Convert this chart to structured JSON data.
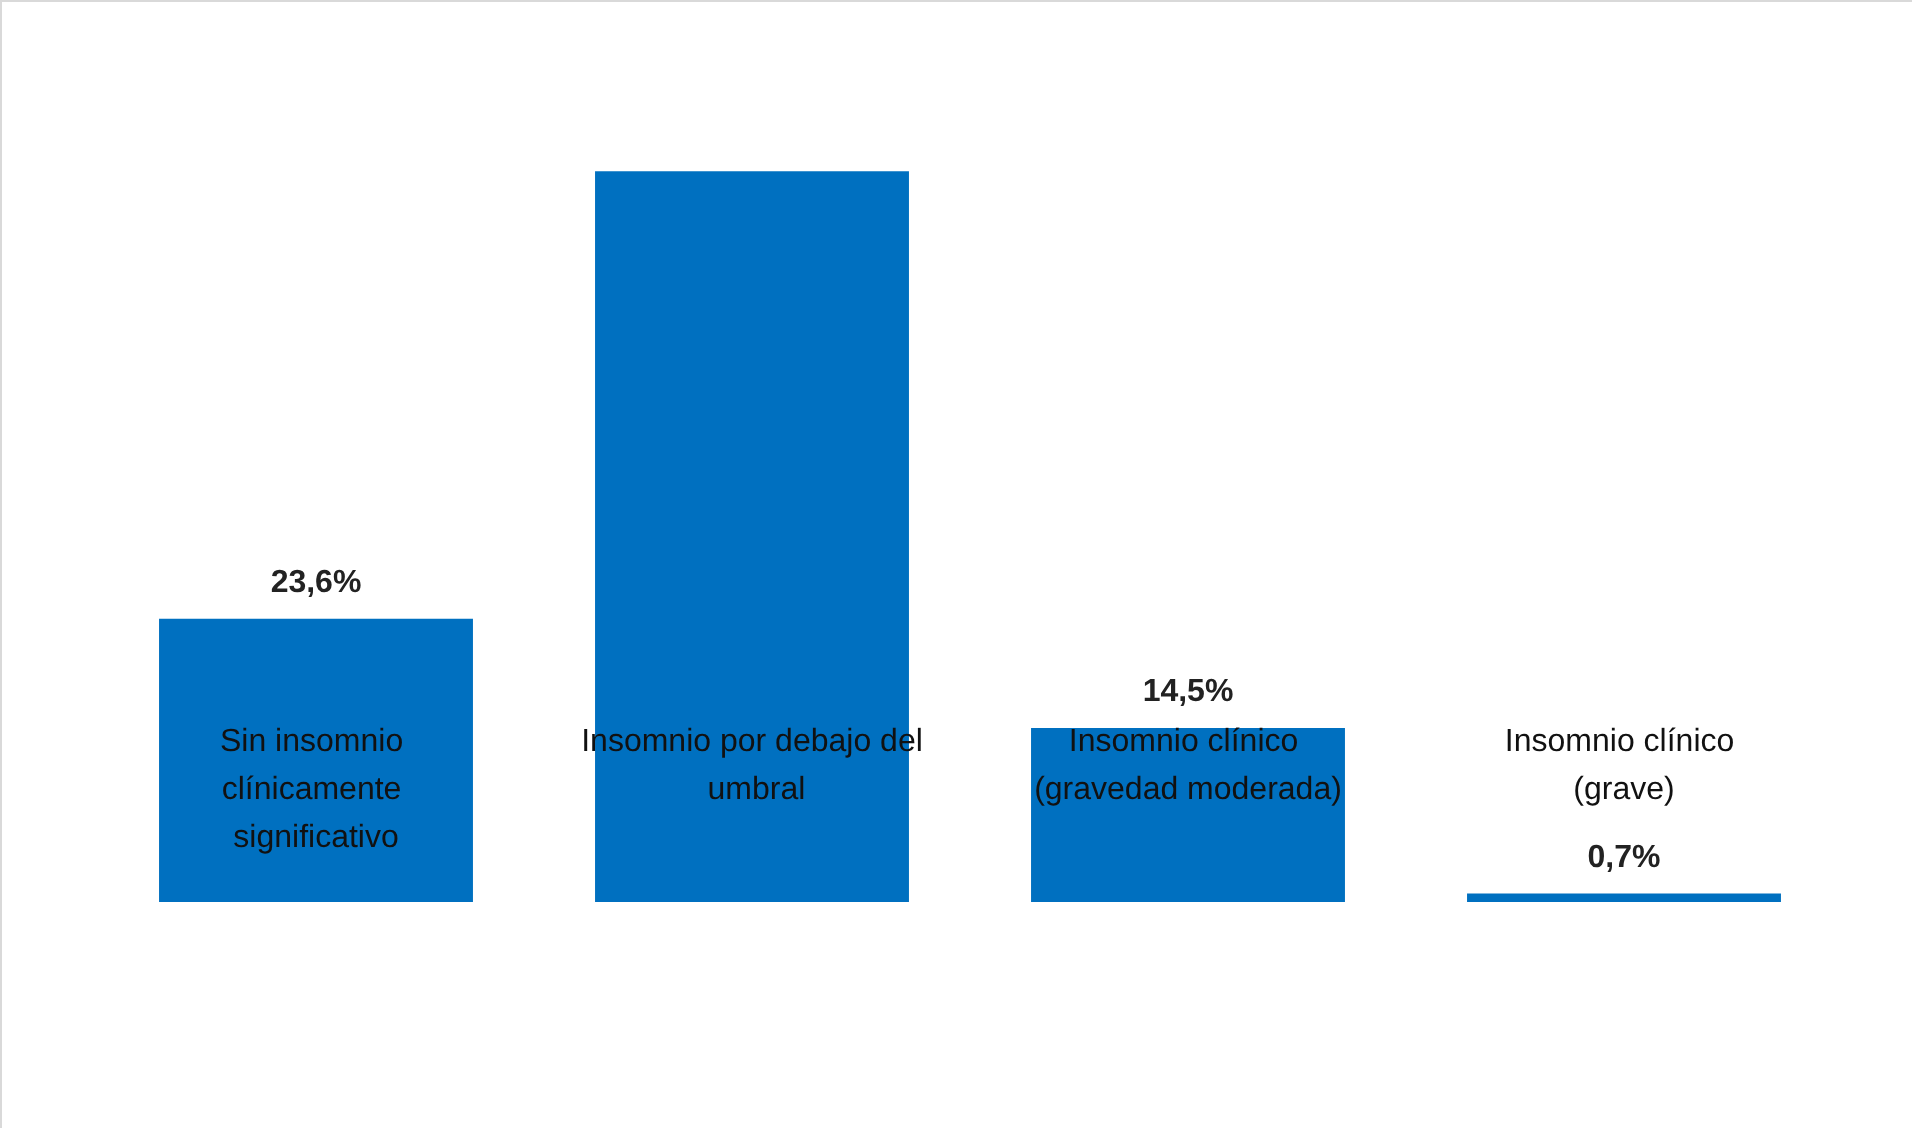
{
  "chart_data": {
    "type": "bar",
    "categories": [
      "Sin insomnio clínicamente significativo",
      "Insomnio por debajo del umbral",
      "Insomnio clínico (gravedad moderada)",
      "Insomnio clínico (grave)"
    ],
    "values": [
      23.6,
      60.9,
      14.5,
      0.7
    ],
    "value_labels": [
      "23,6%",
      null,
      "14,5%",
      "0,7%"
    ],
    "color": "#0070c0"
  }
}
